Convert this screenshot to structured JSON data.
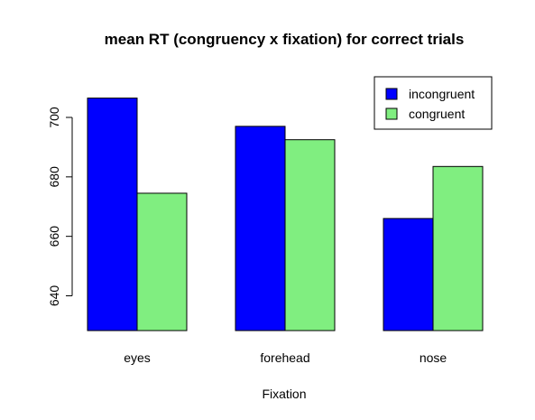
{
  "chart_data": {
    "type": "bar",
    "title": "mean RT (congruency x fixation) for correct trials",
    "xlabel": "Fixation",
    "ylabel": "",
    "categories": [
      "eyes",
      "forehead",
      "nose"
    ],
    "series": [
      {
        "name": "incongruent",
        "color": "#0000ff",
        "values": [
          706.5,
          697,
          666
        ]
      },
      {
        "name": "congruent",
        "color": "#80ee80",
        "values": [
          674.5,
          692.5,
          683.5
        ]
      }
    ],
    "ylim": [
      630,
      710
    ],
    "y_ticks": [
      640,
      660,
      680,
      700
    ],
    "grid": false,
    "legend_position": "top-right",
    "bar_border_color": "#000000"
  }
}
